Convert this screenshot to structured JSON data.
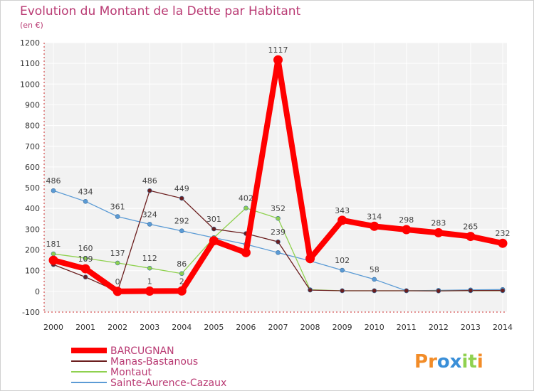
{
  "chart_data": {
    "type": "line",
    "title": "Evolution du Montant de la Dette par Habitant",
    "subtitle": "(en €)",
    "xlabel": "",
    "ylabel": "",
    "ylim": [
      -100,
      1200
    ],
    "yticks": [
      -100,
      0,
      100,
      200,
      300,
      400,
      500,
      600,
      700,
      800,
      900,
      1000,
      1100,
      1200
    ],
    "categories": [
      "2000",
      "2001",
      "2002",
      "2003",
      "2004",
      "2005",
      "2006",
      "2007",
      "2008",
      "2009",
      "2010",
      "2011",
      "2012",
      "2013",
      "2014"
    ],
    "grid": true,
    "legend_position": "bottom-left",
    "series": [
      {
        "name": "Sainte-Aurence-Cazaux",
        "color": "#5b9bd5",
        "values": [
          486,
          434,
          361,
          324,
          292,
          259,
          227,
          187,
          147,
          102,
          58,
          3,
          5,
          7,
          9
        ],
        "labels": [
          "486",
          "434",
          "361",
          "324",
          "292",
          "",
          "",
          "",
          "",
          "102",
          "58",
          "",
          "",
          "",
          ""
        ]
      },
      {
        "name": "Montaut",
        "color": "#8fd14f",
        "values": [
          181,
          160,
          137,
          112,
          86,
          259,
          402,
          352,
          8,
          3,
          3,
          3,
          3,
          3,
          3
        ],
        "labels": [
          "181",
          "160",
          "137",
          "112",
          "86",
          "",
          "402",
          "352",
          "",
          "",
          "",
          "",
          "",
          "",
          ""
        ]
      },
      {
        "name": "Manas-Bastanous",
        "color": "#6b1e1e",
        "values": [
          129,
          69,
          0,
          486,
          449,
          301,
          279,
          239,
          6,
          3,
          3,
          3,
          2,
          4,
          4
        ],
        "labels": [
          "",
          "",
          "",
          "486",
          "449",
          "301",
          "",
          "239",
          "",
          "",
          "",
          "",
          "",
          "",
          ""
        ]
      },
      {
        "name": "BARCUGNAN",
        "color": "#ff0000",
        "values": [
          150,
          109,
          0,
          1,
          2,
          244,
          187,
          1117,
          158,
          343,
          314,
          298,
          283,
          265,
          232
        ],
        "labels": [
          "",
          "109",
          "0",
          "1",
          "2",
          "",
          "",
          "1117",
          "",
          "343",
          "314",
          "298",
          "283",
          "265",
          "232"
        ]
      }
    ]
  },
  "brand": {
    "logo_letters": [
      "P",
      "r",
      "o",
      "x",
      "i",
      "t",
      "i"
    ],
    "logo_colors": [
      "#f28c28",
      "#f28c28",
      "#3a8fd8",
      "#3a8fd8",
      "#8fd14f",
      "#8fd14f",
      "#f28c28"
    ]
  }
}
